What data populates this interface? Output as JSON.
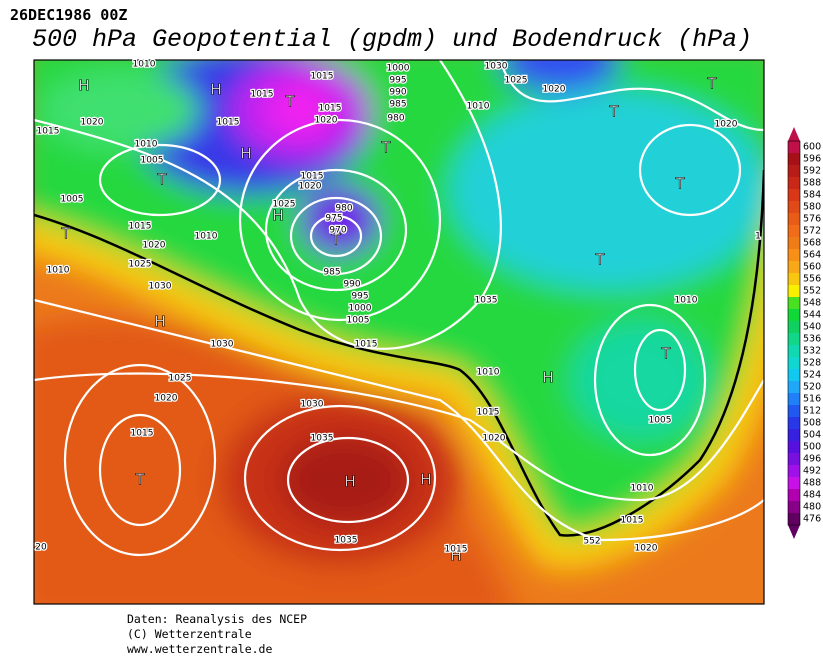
{
  "header": {
    "date": "26DEC1986 00Z",
    "title": "500 hPa Geopotential (gpdm) und Bodendruck (hPa)"
  },
  "colorbar": {
    "levels": [
      600,
      596,
      592,
      588,
      584,
      580,
      576,
      572,
      568,
      564,
      560,
      556,
      552,
      548,
      544,
      540,
      536,
      532,
      528,
      524,
      520,
      516,
      512,
      508,
      504,
      500,
      496,
      492,
      488,
      484,
      480,
      476
    ],
    "colors": [
      "#c0104a",
      "#a81018",
      "#b81c18",
      "#c82818",
      "#d83818",
      "#e04a18",
      "#e85c18",
      "#f06c18",
      "#f07c18",
      "#f89018",
      "#f8a818",
      "#f8c810",
      "#f8f000",
      "#48e020",
      "#10d838",
      "#10d060",
      "#10d888",
      "#10d8b0",
      "#10d8d0",
      "#10c8f0",
      "#20a8f8",
      "#2080f8",
      "#2058f0",
      "#2838e8",
      "#3820e0",
      "#5810e0",
      "#7810e0",
      "#a010e8",
      "#c810e8",
      "#b000b0",
      "#880088",
      "#600060"
    ]
  },
  "map": {
    "symbols": [
      "H",
      "H",
      "T",
      "T",
      "H",
      "T",
      "H",
      "T",
      "T",
      "H",
      "T",
      "H",
      "H",
      "H",
      "T",
      "T",
      "T",
      "T",
      "T",
      "H"
    ],
    "isobar_labels": [
      "1010",
      "1015",
      "1000",
      "995",
      "990",
      "985",
      "980",
      "1015",
      "1015",
      "1020",
      "1015",
      "1020",
      "1015",
      "1010",
      "1005",
      "1015",
      "1020",
      "1025",
      "980",
      "975",
      "970",
      "1005",
      "1015",
      "1010",
      "1020",
      "1025",
      "1010",
      "1030",
      "985",
      "990",
      "995",
      "1000",
      "1005",
      "1015",
      "1030",
      "1025",
      "1020",
      "1015",
      "1030",
      "1035",
      "1035",
      "1015",
      "1020",
      "1015",
      "1010",
      "1005",
      "1010",
      "1010",
      "1015",
      "1020",
      "1035",
      "1030",
      "1025",
      "1020",
      "1010",
      "1020",
      "20",
      "552",
      "1"
    ]
  },
  "footer": [
    "Daten: Reanalysis des NCEP",
    "(C) Wetterzentrale",
    "www.wetterzentrale.de"
  ]
}
